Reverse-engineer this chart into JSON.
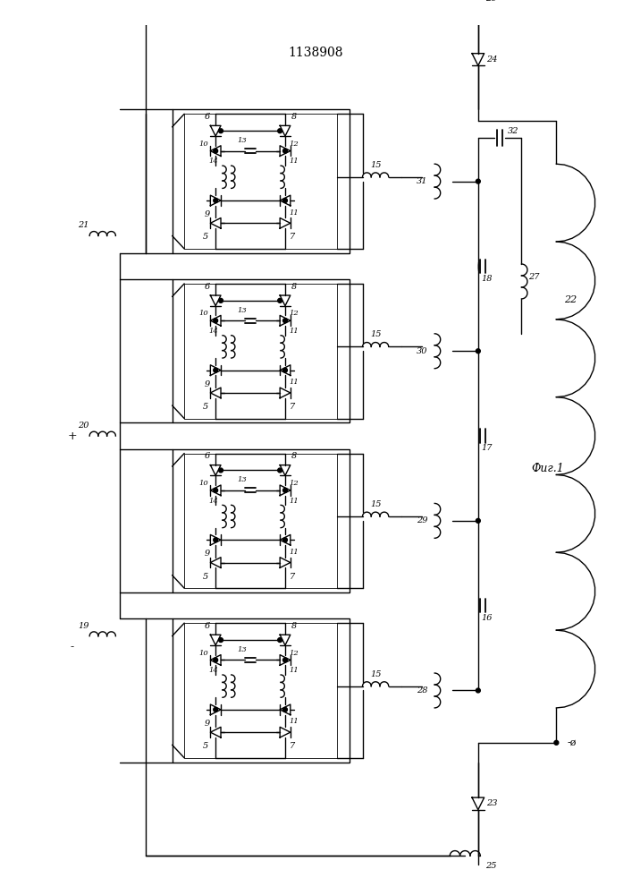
{
  "title": "1138908",
  "fig_label": "Фиг.1",
  "bg_color": "#ffffff",
  "line_color": "#000000",
  "title_fontsize": 10,
  "fig_width": 7.07,
  "fig_height": 10.0,
  "dpi": 100
}
